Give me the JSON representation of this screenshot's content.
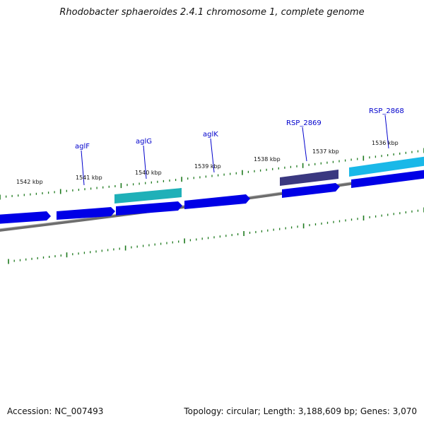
{
  "title": "Rhodobacter sphaeroides 2.4.1 chromosome 1, complete genome",
  "footer": {
    "accession": "Accession: NC_007493",
    "summary": "Topology: circular; Length: 3,188,609 bp; Genes: 3,070"
  },
  "colors": {
    "tick": "#1e7a1e",
    "backbone": "#7a7a7a",
    "gene_forward": "#0000e6",
    "gene_teal": "#1fb0b8",
    "gene_cyan": "#1ab8e8",
    "gene_dark": "#3a3880",
    "label": "#0000cc"
  },
  "kbp_labels": [
    {
      "text": "1542 kbp"
    },
    {
      "text": "1541 kbp"
    },
    {
      "text": "1540 kbp"
    },
    {
      "text": "1539 kbp"
    },
    {
      "text": "1538 kbp"
    },
    {
      "text": "1537 kbp"
    },
    {
      "text": "1536 kbp"
    }
  ],
  "gene_labels": [
    {
      "text": "aglF"
    },
    {
      "text": "aglG"
    },
    {
      "text": "aglK"
    },
    {
      "text": "RSP_2869"
    },
    {
      "text": "RSP_2868"
    }
  ]
}
